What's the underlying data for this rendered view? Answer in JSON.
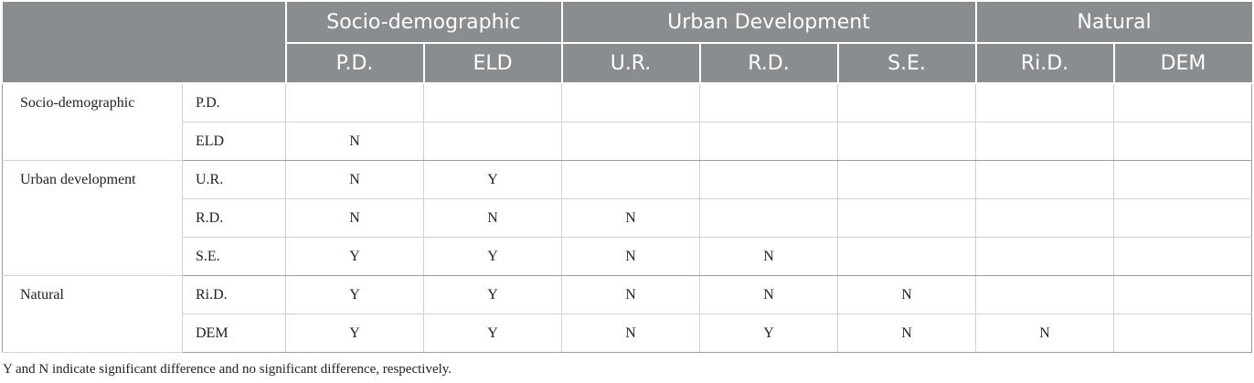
{
  "header": {
    "groups": [
      "Socio-demographic",
      "Urban Development",
      "Natural"
    ],
    "columns": [
      "P.D.",
      "ELD",
      "U.R.",
      "R.D.",
      "S.E.",
      "Ri.D.",
      "DEM"
    ]
  },
  "groups": [
    {
      "label": "Socio-demographic",
      "rows": [
        {
          "label": "P.D.",
          "cells": [
            "",
            "",
            "",
            "",
            "",
            "",
            ""
          ]
        },
        {
          "label": "ELD",
          "cells": [
            "N",
            "",
            "",
            "",
            "",
            "",
            ""
          ]
        }
      ]
    },
    {
      "label": "Urban development",
      "rows": [
        {
          "label": "U.R.",
          "cells": [
            "N",
            "Y",
            "",
            "",
            "",
            "",
            ""
          ]
        },
        {
          "label": "R.D.",
          "cells": [
            "N",
            "N",
            "N",
            "",
            "",
            "",
            ""
          ]
        },
        {
          "label": "S.E.",
          "cells": [
            "Y",
            "Y",
            "N",
            "N",
            "",
            "",
            ""
          ]
        }
      ]
    },
    {
      "label": "Natural",
      "rows": [
        {
          "label": "Ri.D.",
          "cells": [
            "Y",
            "Y",
            "N",
            "N",
            "N",
            "",
            ""
          ]
        },
        {
          "label": "DEM",
          "cells": [
            "Y",
            "Y",
            "N",
            "Y",
            "N",
            "N",
            ""
          ]
        }
      ]
    }
  ],
  "footnote": "Y and N indicate significant difference and no significant difference, respectively."
}
